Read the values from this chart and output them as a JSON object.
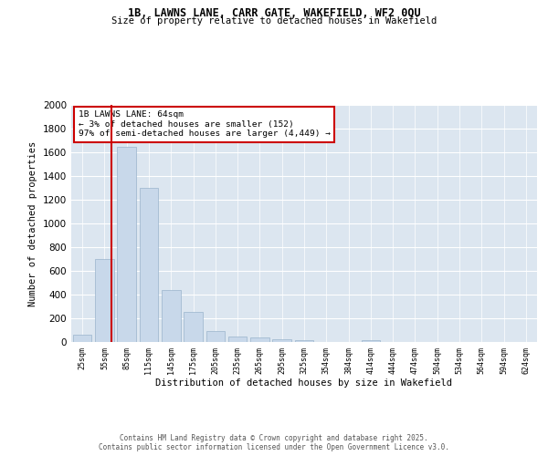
{
  "title_line1": "1B, LAWNS LANE, CARR GATE, WAKEFIELD, WF2 0QU",
  "title_line2": "Size of property relative to detached houses in Wakefield",
  "xlabel": "Distribution of detached houses by size in Wakefield",
  "ylabel": "Number of detached properties",
  "bar_color": "#c8d8ea",
  "bar_edgecolor": "#9ab4cc",
  "vline_x_idx": 1.3,
  "vline_color": "#cc0000",
  "annotation_title": "1B LAWNS LANE: 64sqm",
  "annotation_line2": "← 3% of detached houses are smaller (152)",
  "annotation_line3": "97% of semi-detached houses are larger (4,449) →",
  "annotation_box_color": "#cc0000",
  "categories": [
    "25sqm",
    "55sqm",
    "85sqm",
    "115sqm",
    "145sqm",
    "175sqm",
    "205sqm",
    "235sqm",
    "265sqm",
    "295sqm",
    "325sqm",
    "354sqm",
    "384sqm",
    "414sqm",
    "444sqm",
    "474sqm",
    "504sqm",
    "534sqm",
    "564sqm",
    "594sqm",
    "624sqm"
  ],
  "values": [
    60,
    700,
    1650,
    1300,
    440,
    255,
    95,
    48,
    35,
    22,
    15,
    0,
    0,
    12,
    0,
    0,
    0,
    0,
    0,
    0,
    0
  ],
  "ylim": [
    0,
    2000
  ],
  "yticks": [
    0,
    200,
    400,
    600,
    800,
    1000,
    1200,
    1400,
    1600,
    1800,
    2000
  ],
  "fig_background": "#ffffff",
  "plot_background": "#dce6f0",
  "grid_color": "#ffffff",
  "footer_line1": "Contains HM Land Registry data © Crown copyright and database right 2025.",
  "footer_line2": "Contains public sector information licensed under the Open Government Licence v3.0."
}
